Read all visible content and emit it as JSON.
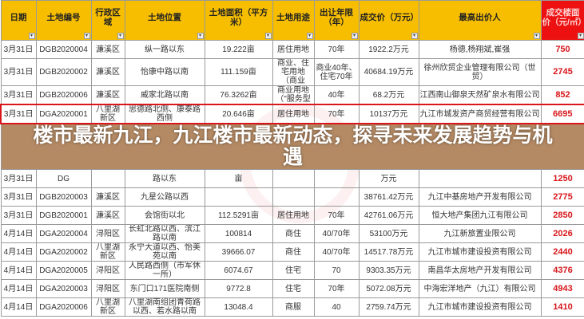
{
  "headers": [
    "日期",
    "土地编号",
    "行政区域",
    "土地位置",
    "土地面积（平方米）",
    "土地用途",
    "出让年限（年）",
    "成交价（万元）",
    "最高出价人",
    "成交楼面价（元/㎡）"
  ],
  "rows": [
    [
      "3月31日",
      "DGB2020004",
      "濂溪区",
      "纵一路以东",
      "19.222亩",
      "居住用地",
      "70年",
      "1922.2万元",
      "杨德,杨翔斌,崔强",
      "750"
    ],
    [
      "3月31日",
      "DGB2020002",
      "濂溪区",
      "怡康中路以南",
      "111.159亩",
      "商业、住宅用地（商业",
      "商业40年、住宅70年",
      "40684.19万元",
      "徐州欣贸企业管理有限公司（世贸）",
      "2745"
    ],
    [
      "3月31日",
      "DGB2020006",
      "濂溪区",
      "威家北路以南",
      "76.3262亩",
      "商业用地（\"服务型",
      "40年",
      "68.2万元",
      "江西南山御泉天然矿泉水有限公司",
      "852"
    ],
    [
      "3月31日",
      "DGA2020001",
      "八里湖新区",
      "思德路北侧、康泰路西侧",
      "20.646亩",
      "居住用地",
      "70年",
      "10137万元",
      "九江市城发资产商贸经营有限公司",
      "6695"
    ],
    [
      "3月31日",
      "DG",
      "",
      "路以东",
      "亩",
      "",
      "",
      "万元",
      "",
      "1250"
    ],
    [
      "3月31日",
      "DGB2020003",
      "濂溪区",
      "九星公路以西",
      "",
      "",
      "",
      "38761.42万元",
      "九江中基房地产开发有限公司",
      "2775"
    ],
    [
      "3月31日",
      "DGB2020001",
      "濂溪区",
      "会馆街以北",
      "112.5291亩",
      "居住用地",
      "70年",
      "42761.06万元",
      "恒大地产集团九江有限公司",
      "2850"
    ],
    [
      "4月14日",
      "DGA2020004",
      "浔阳区",
      "长虹北路以西、滨江路以南",
      "100814",
      "商住",
      "40/70年",
      "53100万元",
      "九江新旅置业限公司",
      "2026"
    ],
    [
      "4月14日",
      "DGA2020002",
      "八里湖新区",
      "永宁大道以西、怡美苑以南",
      "39666.07",
      "商住",
      "40/70年",
      "14517.78万元",
      "九江市城市建设投资有限公司",
      "2440"
    ],
    [
      "4月14日",
      "DGA2020005",
      "浔阳区",
      "人民路西侧（市军休一所）",
      "6074.67",
      "住宅",
      "70",
      "9303.35万元",
      "南昌华太房地产开发有限公司",
      "4376"
    ],
    [
      "4月14日",
      "DGA2020003",
      "浔阳区",
      "东门口171医院南侧",
      "9772.8",
      "住宅",
      "70年",
      "5072.08万元",
      "中海宏洋地产（九江）有限公司",
      "4943"
    ],
    [
      "4月14日",
      "DGA2020006",
      "八里湖新区",
      "八里湖南组团青荷路以西、若水路以南",
      "13048.4",
      "商服",
      "40",
      "2759.74万元",
      "九江市城市建设投资有限公司",
      "1410"
    ]
  ],
  "overlay_title": "楼市最新九江，九江楼市最新动态，探寻未来发展趋势与机遇",
  "watermark": "house.ifeng.com 九江站",
  "colors": {
    "header": "#f7be00",
    "price_header": "#ee1111",
    "price_text": "#d8161b",
    "highlight": "#d8161b"
  }
}
